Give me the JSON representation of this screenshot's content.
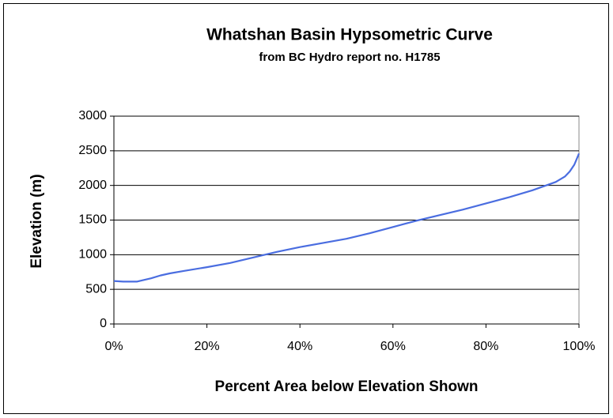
{
  "chart_data": {
    "type": "line",
    "title": "Whatshan Basin Hypsometric Curve",
    "subtitle": "from BC Hydro report no. H1785",
    "x_label": "Percent Area below Elevation Shown",
    "y_label": "Elevation (m)",
    "x": [
      0,
      2,
      5,
      8,
      10,
      12,
      15,
      20,
      25,
      30,
      35,
      40,
      45,
      50,
      55,
      60,
      65,
      70,
      75,
      80,
      85,
      90,
      95,
      97,
      98,
      99,
      100
    ],
    "series": [
      {
        "name": "Elevation",
        "color": "#4a6de0",
        "values": [
          620,
          612,
          612,
          660,
          700,
          730,
          765,
          820,
          880,
          960,
          1040,
          1110,
          1170,
          1230,
          1310,
          1400,
          1490,
          1570,
          1650,
          1740,
          1830,
          1930,
          2050,
          2130,
          2200,
          2300,
          2460
        ]
      }
    ],
    "xlim": [
      0,
      100
    ],
    "xticks": [
      {
        "value": 0,
        "label": "0%"
      },
      {
        "value": 20,
        "label": "20%"
      },
      {
        "value": 40,
        "label": "40%"
      },
      {
        "value": 60,
        "label": "60%"
      },
      {
        "value": 80,
        "label": "80%"
      },
      {
        "value": 100,
        "label": "100%"
      }
    ],
    "ylim": [
      0,
      3000
    ],
    "yticks": [
      0,
      500,
      1000,
      1500,
      2000,
      2500,
      3000
    ],
    "grid": true
  }
}
